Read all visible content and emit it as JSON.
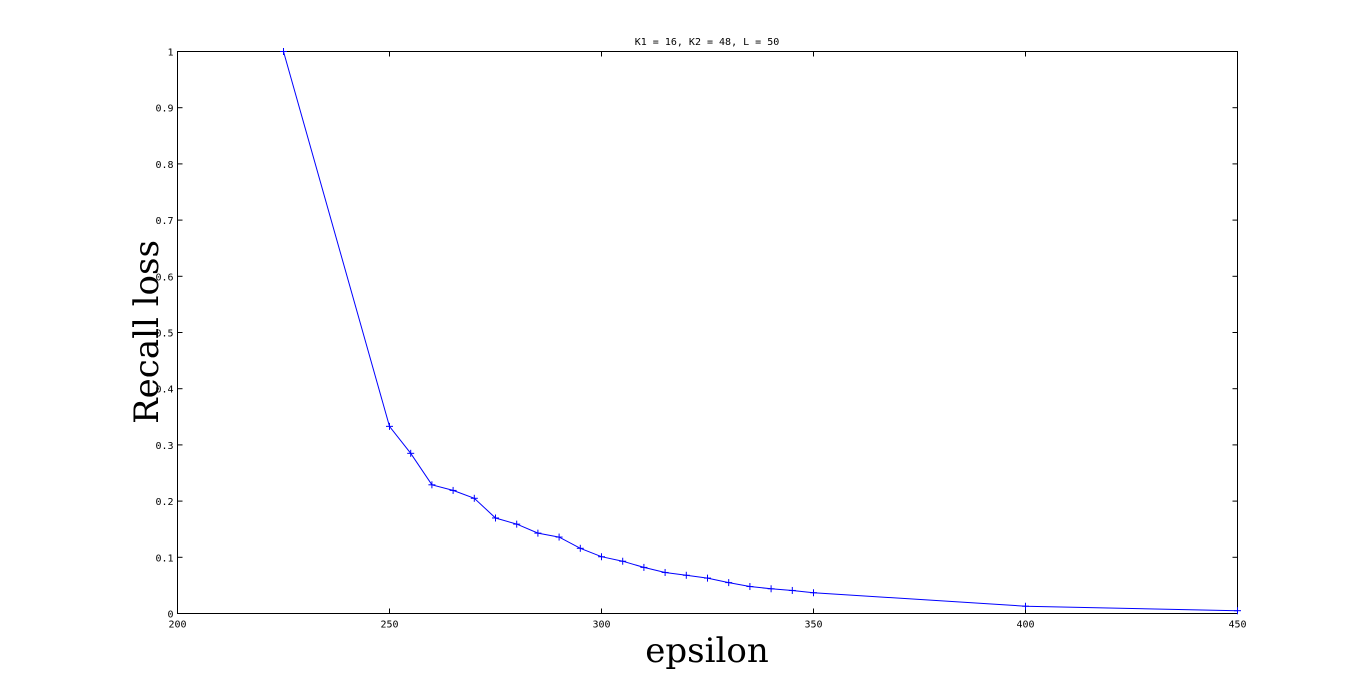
{
  "chart_data": {
    "type": "line",
    "title": "K1 = 16, K2 = 48, L = 50",
    "xlabel": "epsilon",
    "ylabel": "Recall loss",
    "xlim": [
      200,
      450
    ],
    "ylim": [
      0,
      1
    ],
    "xticks": [
      200,
      250,
      300,
      350,
      400,
      450
    ],
    "yticks": [
      0,
      0.1,
      0.2,
      0.3,
      0.4,
      0.5,
      0.6,
      0.7,
      0.8,
      0.9,
      1
    ],
    "xtick_labels": [
      "200",
      "250",
      "300",
      "350",
      "400",
      "450"
    ],
    "ytick_labels": [
      "0",
      "0.1",
      "0.2",
      "0.3",
      "0.4",
      "0.5",
      "0.6",
      "0.7",
      "0.8",
      "0.9",
      "1"
    ],
    "grid": false,
    "legend": "none",
    "series": [
      {
        "color": "#0000ff",
        "marker": "+",
        "x": [
          225,
          250,
          255,
          260,
          265,
          270,
          275,
          280,
          285,
          290,
          295,
          300,
          305,
          310,
          315,
          320,
          325,
          330,
          335,
          340,
          345,
          350,
          400,
          450
        ],
        "y": [
          1.0,
          0.333,
          0.285,
          0.229,
          0.219,
          0.205,
          0.17,
          0.159,
          0.143,
          0.136,
          0.116,
          0.101,
          0.093,
          0.082,
          0.073,
          0.068,
          0.063,
          0.055,
          0.048,
          0.044,
          0.041,
          0.037,
          0.013,
          0.005
        ]
      }
    ]
  }
}
